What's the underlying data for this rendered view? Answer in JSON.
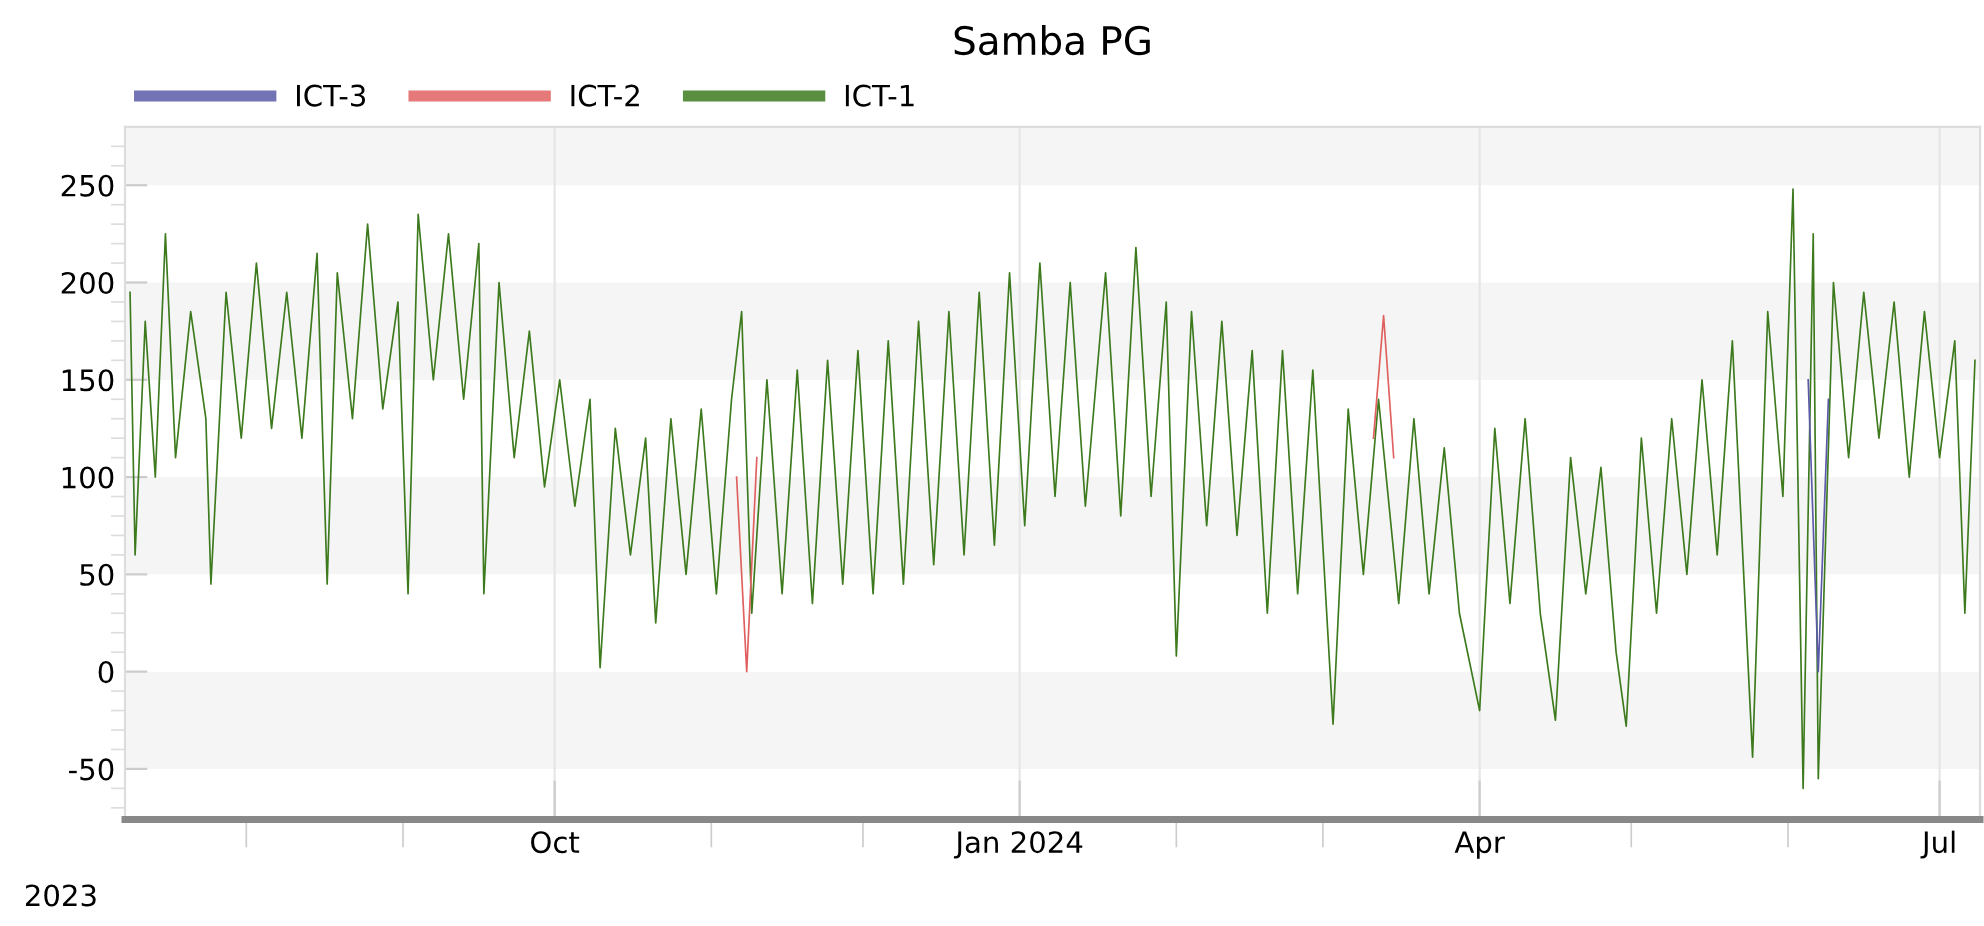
{
  "chart_data": {
    "type": "line",
    "title": "Samba PG",
    "x": [
      "2023-07-09",
      "2023-07-10",
      "2023-07-12",
      "2023-07-14",
      "2023-07-16",
      "2023-07-18",
      "2023-07-21",
      "2023-07-24",
      "2023-07-25",
      "2023-07-28",
      "2023-07-31",
      "2023-08-03",
      "2023-08-06",
      "2023-08-09",
      "2023-08-12",
      "2023-08-15",
      "2023-08-17",
      "2023-08-19",
      "2023-08-22",
      "2023-08-25",
      "2023-08-28",
      "2023-08-31",
      "2023-09-02",
      "2023-09-04",
      "2023-09-07",
      "2023-09-10",
      "2023-09-13",
      "2023-09-16",
      "2023-09-17",
      "2023-09-20",
      "2023-09-23",
      "2023-09-26",
      "2023-09-29",
      "2023-10-02",
      "2023-10-05",
      "2023-10-08",
      "2023-10-10",
      "2023-10-13",
      "2023-10-16",
      "2023-10-19",
      "2023-10-21",
      "2023-10-24",
      "2023-10-27",
      "2023-10-30",
      "2023-11-02",
      "2023-11-05",
      "2023-11-07",
      "2023-11-09",
      "2023-11-12",
      "2023-11-15",
      "2023-11-18",
      "2023-11-21",
      "2023-11-24",
      "2023-11-27",
      "2023-11-30",
      "2023-12-03",
      "2023-12-06",
      "2023-12-09",
      "2023-12-12",
      "2023-12-15",
      "2023-12-18",
      "2023-12-21",
      "2023-12-24",
      "2023-12-27",
      "2023-12-30",
      "2024-01-02",
      "2024-01-05",
      "2024-01-08",
      "2024-01-11",
      "2024-01-14",
      "2024-01-18",
      "2024-01-21",
      "2024-01-24",
      "2024-01-27",
      "2024-01-30",
      "2024-02-01",
      "2024-02-04",
      "2024-02-07",
      "2024-02-10",
      "2024-02-13",
      "2024-02-16",
      "2024-02-19",
      "2024-02-22",
      "2024-02-25",
      "2024-02-28",
      "2024-03-03",
      "2024-03-06",
      "2024-03-09",
      "2024-03-12",
      "2024-03-16",
      "2024-03-19",
      "2024-03-22",
      "2024-03-25",
      "2024-03-28",
      "2024-04-01",
      "2024-04-04",
      "2024-04-07",
      "2024-04-10",
      "2024-04-13",
      "2024-04-16",
      "2024-04-19",
      "2024-04-22",
      "2024-04-25",
      "2024-04-28",
      "2024-04-30",
      "2024-05-03",
      "2024-05-06",
      "2024-05-09",
      "2024-05-12",
      "2024-05-15",
      "2024-05-18",
      "2024-05-21",
      "2024-05-25",
      "2024-05-28",
      "2024-05-31",
      "2024-06-02",
      "2024-06-04",
      "2024-06-06",
      "2024-06-07",
      "2024-06-10",
      "2024-06-13",
      "2024-06-16",
      "2024-06-19",
      "2024-06-22",
      "2024-06-25",
      "2024-06-28",
      "2024-07-01",
      "2024-07-04",
      "2024-07-06",
      "2024-07-08"
    ],
    "series": [
      {
        "name": "ICT-3",
        "color": "#5a5aa8",
        "x": [
          "2024-06-05",
          "2024-06-07",
          "2024-06-09"
        ],
        "values": [
          150,
          0,
          140
        ]
      },
      {
        "name": "ICT-2",
        "color": "#e06060",
        "x": [
          "2023-11-06",
          "2023-11-08",
          "2023-11-10",
          "2024-01-01",
          "2024-03-11",
          "2024-03-13",
          "2024-03-15"
        ],
        "values": [
          100,
          0,
          110,
          null,
          120,
          183,
          110
        ]
      },
      {
        "name": "ICT-1",
        "color": "#3d7a1e",
        "values": [
          195,
          60,
          180,
          100,
          225,
          110,
          185,
          130,
          45,
          195,
          120,
          210,
          125,
          195,
          120,
          215,
          45,
          205,
          130,
          230,
          135,
          190,
          40,
          235,
          150,
          225,
          140,
          220,
          40,
          200,
          110,
          175,
          95,
          150,
          85,
          140,
          2,
          125,
          60,
          120,
          25,
          130,
          50,
          135,
          40,
          140,
          185,
          30,
          150,
          40,
          155,
          35,
          160,
          45,
          165,
          40,
          170,
          45,
          180,
          55,
          185,
          60,
          195,
          65,
          205,
          75,
          210,
          90,
          200,
          85,
          205,
          80,
          218,
          90,
          190,
          8,
          185,
          75,
          180,
          70,
          165,
          30,
          165,
          40,
          155,
          -27,
          135,
          50,
          140,
          35,
          130,
          40,
          115,
          30,
          -20,
          125,
          35,
          130,
          30,
          -25,
          110,
          40,
          105,
          10,
          -28,
          120,
          30,
          130,
          50,
          150,
          60,
          170,
          -44,
          185,
          90,
          248,
          -60,
          225,
          -55,
          200,
          110,
          195,
          120,
          190,
          100,
          185,
          110,
          170,
          30,
          160
        ]
      }
    ],
    "legend": "top left",
    "xlim": [
      "2023-07-08",
      "2024-07-09"
    ],
    "xticks": [
      {
        "value": "2023-08-01",
        "label": null
      },
      {
        "value": "2023-09-01",
        "label": null
      },
      {
        "value": "2023-10-01",
        "label": "Oct"
      },
      {
        "value": "2023-11-01",
        "label": null
      },
      {
        "value": "2023-12-01",
        "label": null
      },
      {
        "value": "2024-01-01",
        "label": "Jan 2024"
      },
      {
        "value": "2024-02-01",
        "label": null
      },
      {
        "value": "2024-03-01",
        "label": null
      },
      {
        "value": "2024-04-01",
        "label": "Apr"
      },
      {
        "value": "2024-05-01",
        "label": null
      },
      {
        "value": "2024-06-01",
        "label": null
      },
      {
        "value": "2024-07-01",
        "label": "Jul"
      }
    ],
    "ylim": [
      -76,
      280
    ],
    "yticks": [
      {
        "value": -70,
        "label": null
      },
      {
        "value": -60,
        "label": null
      },
      -50,
      {
        "value": -40,
        "label": null
      },
      {
        "value": -30,
        "label": null
      },
      {
        "value": -20,
        "label": null
      },
      {
        "value": -10,
        "label": null
      },
      0,
      {
        "value": 10,
        "label": null
      },
      {
        "value": 20,
        "label": null
      },
      {
        "value": 30,
        "label": null
      },
      {
        "value": 40,
        "label": null
      },
      50,
      {
        "value": 60,
        "label": null
      },
      {
        "value": 70,
        "label": null
      },
      {
        "value": 80,
        "label": null
      },
      {
        "value": 90,
        "label": null
      },
      100,
      {
        "value": 110,
        "label": null
      },
      {
        "value": 120,
        "label": null
      },
      {
        "value": 130,
        "label": null
      },
      {
        "value": 140,
        "label": null
      },
      150,
      {
        "value": 160,
        "label": null
      },
      {
        "value": 170,
        "label": null
      },
      {
        "value": 180,
        "label": null
      },
      {
        "value": 190,
        "label": null
      },
      200,
      {
        "value": 210,
        "label": null
      },
      {
        "value": 220,
        "label": null
      },
      {
        "value": 230,
        "label": null
      },
      {
        "value": 240,
        "label": null
      },
      250,
      {
        "value": 260,
        "label": null
      },
      {
        "value": 270,
        "label": null
      }
    ],
    "grid": "x",
    "bands": [
      {
        "axis": "y",
        "from": 250,
        "to": 280,
        "color": "#f5f5f5"
      },
      {
        "axis": "y",
        "from": 150,
        "to": 200,
        "color": "#f5f5f5"
      },
      {
        "axis": "y",
        "from": 50,
        "to": 100,
        "color": "#f5f5f5"
      },
      {
        "axis": "y",
        "from": -50,
        "to": 0,
        "color": "#f5f5f5"
      }
    ],
    "annotations": [
      "2023"
    ]
  }
}
